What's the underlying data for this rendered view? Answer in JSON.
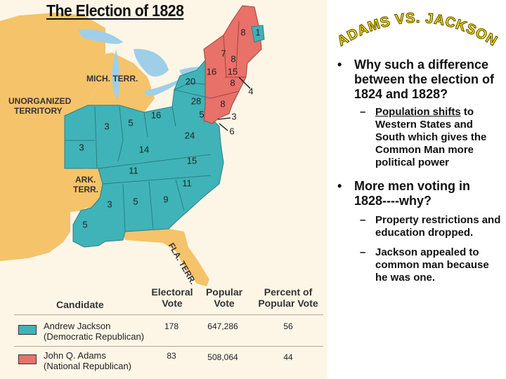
{
  "figure": {
    "title": "The Election of 1828",
    "territories": {
      "michigan": "MICH. TERR.",
      "unorganized_line1": "UNORGANIZED",
      "unorganized_line2": "TERRITORY",
      "arkansas_line1": "ARK.",
      "arkansas_line2": "TERR.",
      "florida": "FLA. TERR."
    },
    "electoral_votes": {
      "maine": "8",
      "maine_extra": "1",
      "new_hampshire": "16",
      "vermont": "7",
      "nh2": "8",
      "massachusetts": "15",
      "connecticut": "8",
      "rhode_island": "4",
      "new_york": "20",
      "pennsylvania": "28",
      "new_jersey": "8",
      "delaware": "3",
      "maryland": "5",
      "maryland_extra": "6",
      "ohio": "16",
      "indiana": "5",
      "illinois": "3",
      "missouri": "3",
      "kentucky": "14",
      "virginia": "24",
      "north_carolina": "15",
      "tennessee": "11",
      "south_carolina": "11",
      "georgia": "9",
      "alabama": "5",
      "mississippi": "3",
      "louisiana": "5"
    },
    "colors": {
      "jackson": "#3fb3b8",
      "adams": "#e8716a",
      "territory": "#f5c36a",
      "water": "#9fcfe8",
      "land": "#fdf6e7"
    },
    "table": {
      "headers": {
        "candidate": "Candidate",
        "electoral_1": "Electoral",
        "electoral_2": "Vote",
        "popular_1": "Popular",
        "popular_2": "Vote",
        "percent_1": "Percent of",
        "percent_2": "Popular Vote"
      },
      "rows": [
        {
          "name": "Andrew Jackson",
          "party": "(Democratic Republican)",
          "electoral": "178",
          "popular": "647,286",
          "percent": "56"
        },
        {
          "name": "John Q. Adams",
          "party": "(National Republican)",
          "electoral": "83",
          "popular": "508,064",
          "percent": "44"
        }
      ]
    }
  },
  "side": {
    "heading": "ADAMS  VS.  JACKSON",
    "bullets": [
      {
        "text": "Why such a difference between the election of 1824 and 1828?",
        "subs": [
          {
            "lead": "Population shifts",
            "rest": " to Western States and South which gives the Common Man more political power"
          }
        ]
      },
      {
        "text": "More men voting in 1828----why?",
        "subs": [
          {
            "text": "Property restrictions and education dropped."
          },
          {
            "text": "Jackson appealed to common man because he was one."
          }
        ]
      }
    ],
    "bullet_glyph": "•",
    "dash_glyph": "–"
  }
}
